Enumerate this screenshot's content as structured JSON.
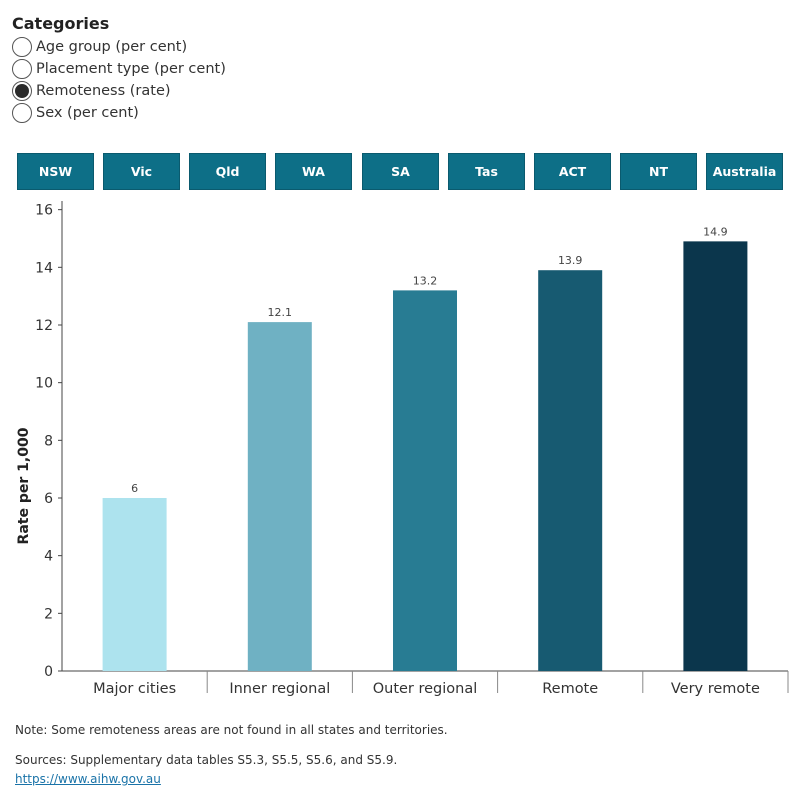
{
  "categories": {
    "title": "Categories",
    "options": [
      {
        "label": "Age group (per cent)",
        "selected": false
      },
      {
        "label": "Placement type (per cent)",
        "selected": false
      },
      {
        "label": "Remoteness (rate)",
        "selected": true
      },
      {
        "label": "Sex (per cent)",
        "selected": false
      }
    ]
  },
  "tabs": [
    "NSW",
    "Vic",
    "Qld",
    "WA",
    "SA",
    "Tas",
    "ACT",
    "NT",
    "Australia"
  ],
  "colors": {
    "tab_bg": "#0d6f87",
    "bars": [
      "#ade3ee",
      "#6fb1c3",
      "#287c93",
      "#175a71",
      "#0b364c"
    ]
  },
  "chart_data": {
    "type": "bar",
    "categories": [
      "Major cities",
      "Inner regional",
      "Outer regional",
      "Remote",
      "Very remote"
    ],
    "values": [
      6,
      12.1,
      13.2,
      13.9,
      14.9
    ],
    "data_labels": [
      "6",
      "12.1",
      "13.2",
      "13.9",
      "14.9"
    ],
    "title": "",
    "xlabel": "",
    "ylabel": "Rate per 1,000",
    "ylim": [
      0,
      16.3
    ],
    "yticks": [
      0,
      2,
      4,
      6,
      8,
      10,
      12,
      14,
      16
    ],
    "grid": false
  },
  "notes": {
    "note": "Note: Some remoteness areas are not found in all states and territories.",
    "sources": "Sources: Supplementary data tables S5.3, S5.5, S5.6, and S5.9.",
    "link": "https://www.aihw.gov.au"
  }
}
